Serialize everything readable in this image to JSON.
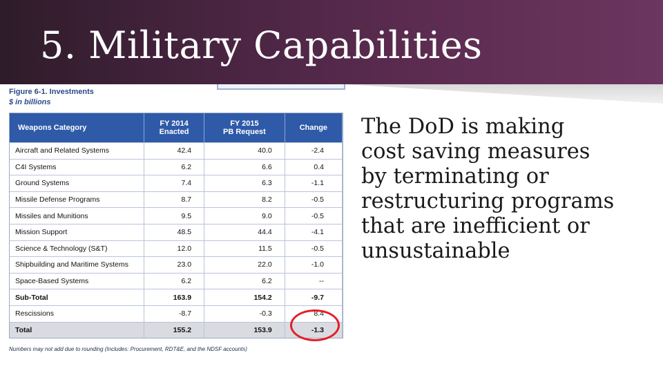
{
  "slide": {
    "title": "5. Military Capabilities",
    "body_lines": [
      "The DoD is making",
      "cost saving measures",
      "by terminating or",
      "restructuring programs",
      "that are inefficient or",
      "unsustainable"
    ]
  },
  "figure": {
    "caption": "Figure 6-1. Investments",
    "units": "$ in billions",
    "headers": {
      "category": "Weapons Category",
      "fy2014_line1": "FY 2014",
      "fy2014_line2": "Enacted",
      "fy2015_line1": "FY 2015",
      "fy2015_line2": "PB Request",
      "change": "Change"
    },
    "rows": [
      {
        "category": "Aircraft and Related Systems",
        "fy2014": "42.4",
        "fy2015": "40.0",
        "change": "-2.4"
      },
      {
        "category": "C4I Systems",
        "fy2014": "6.2",
        "fy2015": "6.6",
        "change": "0.4"
      },
      {
        "category": "Ground Systems",
        "fy2014": "7.4",
        "fy2015": "6.3",
        "change": "-1.1"
      },
      {
        "category": "Missile Defense Programs",
        "fy2014": "8.7",
        "fy2015": "8.2",
        "change": "-0.5"
      },
      {
        "category": "Missiles and Munitions",
        "fy2014": "9.5",
        "fy2015": "9.0",
        "change": "-0.5"
      },
      {
        "category": "Mission Support",
        "fy2014": "48.5",
        "fy2015": "44.4",
        "change": "-4.1"
      },
      {
        "category": "Science & Technology (S&T)",
        "fy2014": "12.0",
        "fy2015": "11.5",
        "change": "-0.5"
      },
      {
        "category": "Shipbuilding and Maritime Systems",
        "fy2014": "23.0",
        "fy2015": "22.0",
        "change": "-1.0"
      },
      {
        "category": "Space-Based Systems",
        "fy2014": "6.2",
        "fy2015": "6.2",
        "change": "--"
      }
    ],
    "subtotal": {
      "category": "Sub-Total",
      "fy2014": "163.9",
      "fy2015": "154.2",
      "change": "-9.7"
    },
    "rescissions": {
      "category": "Rescissions",
      "fy2014": "-8.7",
      "fy2015": "-0.3",
      "change": "8.4"
    },
    "total": {
      "category": "Total",
      "fy2014": "155.2",
      "fy2015": "153.9",
      "change": "-1.3"
    },
    "footnote": "Numbers may not add due to rounding  (Includes:  Procurement, RDT&E, and the NDSF accounts)",
    "highlight_color": "#e41e26"
  },
  "colors": {
    "header_band": "#4a2542",
    "table_header": "#2e5aa8"
  }
}
